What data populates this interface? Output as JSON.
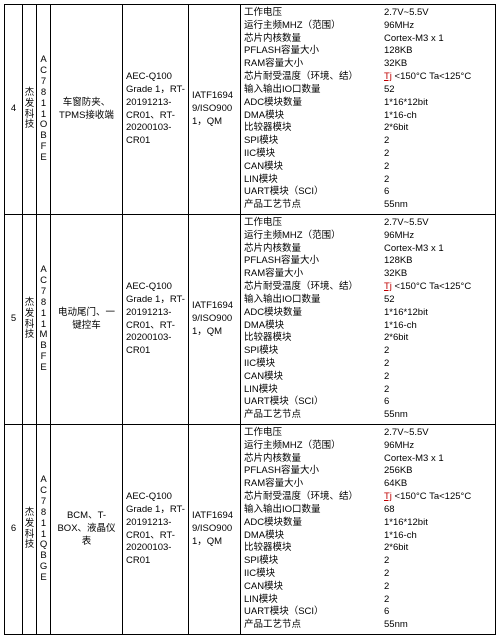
{
  "common": {
    "vendor": "杰发科技",
    "cert": "IATF16949/ISO9001，QM",
    "tj_token": "Tj",
    "spec_labels": {
      "voltage": "工作电压",
      "freq": "运行主频MHZ（范围）",
      "core_count": "芯片内核数量",
      "pflash": "PFLASH容量大小",
      "ram": "RAM容量大小",
      "temp": "芯片耐受温度（环境、结）",
      "temp_suffix": "<150°C Ta<125°C",
      "io": "输入输出IO口数量",
      "adc": "ADC模块数量",
      "dma": "DMA模块",
      "cmp": "比较器模块",
      "spi": "SPI模块",
      "iic": "IIC模块",
      "can": "CAN模块",
      "lin": "LIN模块",
      "uart": "UART模块（SCI）",
      "process": "产品工艺节点"
    }
  },
  "rows": [
    {
      "idx": "4",
      "part": "AC7811OBFE",
      "app": "车窗防夹、TPMS接收端",
      "grade": "AEC-Q100 Grade 1，RT-20191213-CR01、RT-20200103-CR01",
      "spec": {
        "voltage": "2.7V~5.5V",
        "freq": "96MHz",
        "core": "Cortex-M3 x 1",
        "pflash": "128KB",
        "ram": "32KB",
        "io": "52",
        "adc": "1*16*12bit",
        "dma": "1*16-ch",
        "cmp": "2*6bit",
        "spi": "2",
        "iic": "2",
        "can": "2",
        "lin": "2",
        "uart": "6",
        "process": "55nm"
      }
    },
    {
      "idx": "5",
      "part": "AC7811MBFE",
      "app": "电动尾门、一键控车",
      "grade": "AEC-Q100 Grade 1，RT-20191213-CR01、RT-20200103-CR01",
      "spec": {
        "voltage": "2.7V~5.5V",
        "freq": "96MHz",
        "core": "Cortex-M3 x 1",
        "pflash": "128KB",
        "ram": "32KB",
        "io": "52",
        "adc": "1*16*12bit",
        "dma": "1*16-ch",
        "cmp": "2*6bit",
        "spi": "2",
        "iic": "2",
        "can": "2",
        "lin": "2",
        "uart": "6",
        "process": "55nm"
      }
    },
    {
      "idx": "6",
      "part": "AC7811QBGE",
      "app": "BCM、T-BOX、液晶仪表",
      "grade": "AEC-Q100 Grade 1，RT-20191213-CR01、RT-20200103-CR01",
      "spec": {
        "voltage": "2.7V~5.5V",
        "freq": "96MHz",
        "core": "Cortex-M3 x 1",
        "pflash": "256KB",
        "ram": "64KB",
        "io": "68",
        "adc": "1*16*12bit",
        "dma": "1*16-ch",
        "cmp": "2*6bit",
        "spi": "2",
        "iic": "2",
        "can": "2",
        "lin": "2",
        "uart": "6",
        "process": "55nm"
      }
    }
  ]
}
